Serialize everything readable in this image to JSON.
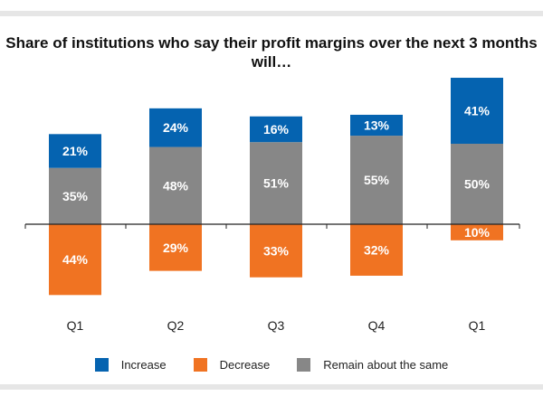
{
  "chart_data": {
    "type": "bar",
    "stacked": true,
    "title": "Share of institutions who say their profit margins over the next 3 months will…",
    "categories": [
      "Q1",
      "Q2",
      "Q3",
      "Q4",
      "Q1"
    ],
    "series": [
      {
        "name": "Increase",
        "color": "#0563b0",
        "values": [
          21,
          24,
          16,
          13,
          41
        ]
      },
      {
        "name": "Decrease",
        "color": "#f07322",
        "values": [
          44,
          29,
          33,
          32,
          10
        ],
        "direction": "below-axis"
      },
      {
        "name": "Remain about the same",
        "color": "#878787",
        "values": [
          35,
          48,
          51,
          55,
          50
        ]
      }
    ],
    "data_labels": true,
    "grid": false,
    "legend_placement": "bottom"
  }
}
